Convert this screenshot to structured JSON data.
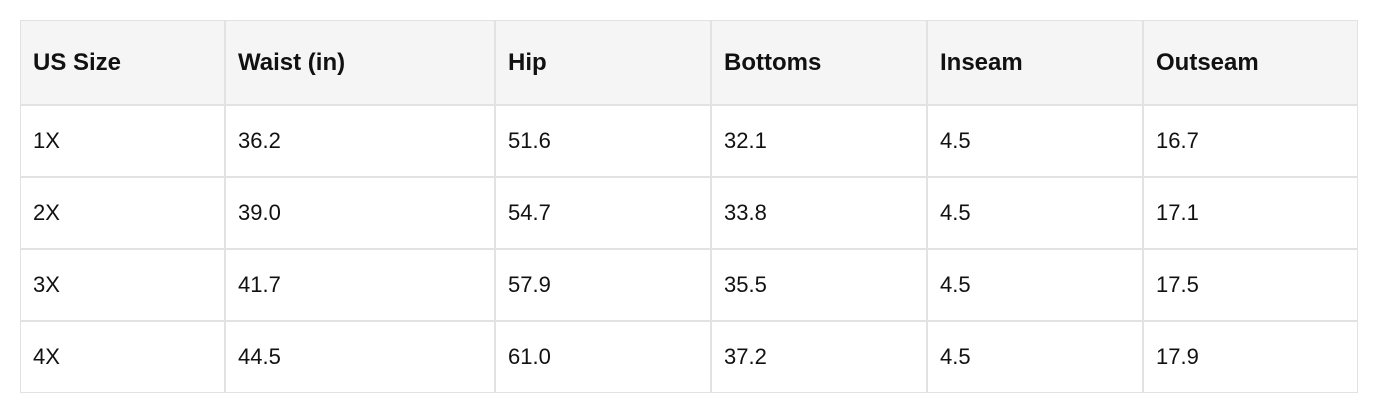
{
  "table": {
    "header": [
      "US Size",
      "Waist (in)",
      "Hip",
      "Bottoms",
      "Inseam",
      "Outseam"
    ],
    "rows": [
      [
        "1X",
        "36.2",
        "51.6",
        "32.1",
        "4.5",
        "16.7"
      ],
      [
        "2X",
        "39.0",
        "54.7",
        "33.8",
        "4.5",
        "17.1"
      ],
      [
        "3X",
        "41.7",
        "57.9",
        "35.5",
        "4.5",
        "17.5"
      ],
      [
        "4X",
        "44.5",
        "61.0",
        "37.2",
        "4.5",
        "17.9"
      ]
    ]
  }
}
